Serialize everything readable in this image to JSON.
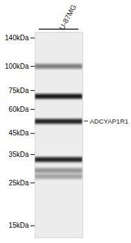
{
  "chart_data": {
    "type": "western_blot",
    "lane_label": "U-87MG",
    "ylim": [
      13,
      150
    ],
    "log": "y",
    "yticks": [
      {
        "value": 140,
        "label": "140kDa"
      },
      {
        "value": 100,
        "label": "100kDa"
      },
      {
        "value": 75,
        "label": "75kDa"
      },
      {
        "value": 60,
        "label": "60kDa"
      },
      {
        "value": 45,
        "label": "45kDa"
      },
      {
        "value": 35,
        "label": "35kDa"
      },
      {
        "value": 25,
        "label": "25kDa"
      },
      {
        "value": 15,
        "label": "15kDa"
      }
    ],
    "bands": [
      {
        "kda": 100,
        "intensity": 0.5
      },
      {
        "kda": 70,
        "intensity": 0.95
      },
      {
        "kda": 52,
        "intensity": 0.9
      },
      {
        "kda": 33,
        "intensity": 0.9
      },
      {
        "kda": 29,
        "intensity": 0.4
      },
      {
        "kda": 27,
        "intensity": 0.35
      }
    ],
    "target": {
      "label": "ADCYAP1R1",
      "kda": 52
    }
  }
}
